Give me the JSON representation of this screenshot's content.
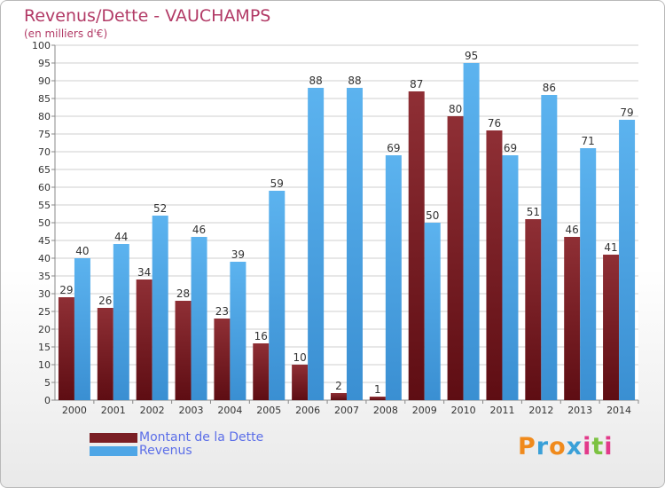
{
  "header": {
    "title": "Revenus/Dette - VAUCHAMPS",
    "subtitle": "(en milliers d'€)"
  },
  "legend": {
    "items": [
      {
        "label": "Montant de la Dette",
        "color": "#7a1e24"
      },
      {
        "label": "Revenus",
        "color": "#4ea6e6"
      }
    ]
  },
  "logo": {
    "text": "Proxiti",
    "letter_colors": [
      "#f08a1c",
      "#3aa0d8",
      "#f08a1c",
      "#3aa0d8",
      "#e23a8a",
      "#7cc242",
      "#e23a8a"
    ]
  },
  "colors": {
    "dette": "#7a1e24",
    "revenus": "#4ea6e6",
    "grid": "#cfcfcf",
    "axis_text": "#333333"
  },
  "chart_data": {
    "type": "bar",
    "title": "Revenus/Dette - VAUCHAMPS",
    "subtitle": "(en milliers d'€)",
    "categories": [
      "2000",
      "2001",
      "2002",
      "2003",
      "2004",
      "2005",
      "2006",
      "2007",
      "2008",
      "2009",
      "2010",
      "2011",
      "2012",
      "2013",
      "2014"
    ],
    "series": [
      {
        "name": "Montant de la Dette",
        "values": [
          29,
          26,
          34,
          28,
          23,
          16,
          10,
          2,
          1,
          87,
          80,
          76,
          51,
          46,
          41
        ]
      },
      {
        "name": "Revenus",
        "values": [
          40,
          44,
          52,
          46,
          39,
          59,
          88,
          88,
          69,
          50,
          95,
          69,
          86,
          71,
          79
        ]
      }
    ],
    "ylim": [
      0,
      100
    ],
    "yticks": [
      0,
      5,
      10,
      15,
      20,
      25,
      30,
      35,
      40,
      45,
      50,
      55,
      60,
      65,
      70,
      75,
      80,
      85,
      90,
      95,
      100
    ],
    "grid": true,
    "legend_position": "bottom-left"
  }
}
